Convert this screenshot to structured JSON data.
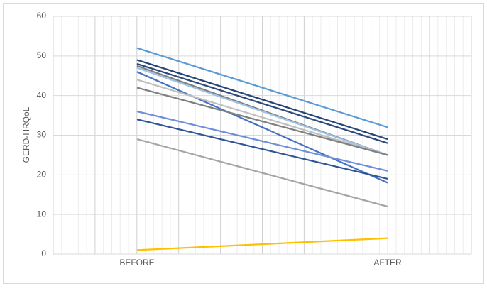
{
  "chart_data": {
    "type": "line",
    "y_label": "GERD-HRQoL",
    "categories": [
      "BEFORE",
      "AFTER"
    ],
    "ylim": [
      0,
      60
    ],
    "yticks": [
      0,
      10,
      20,
      30,
      40,
      50,
      60
    ],
    "grid": true,
    "series": [
      {
        "color": "#5b9bd5",
        "values": [
          52,
          32
        ]
      },
      {
        "color": "#264478",
        "values": [
          49,
          29
        ]
      },
      {
        "color": "#2e4a7a",
        "values": [
          48,
          28
        ]
      },
      {
        "color": "#7f7f7f",
        "values": [
          47.5,
          25
        ]
      },
      {
        "color": "#9dc3e6",
        "values": [
          47,
          25
        ]
      },
      {
        "color": "#4472c4",
        "values": [
          46,
          18
        ]
      },
      {
        "color": "#bfbfbf",
        "values": [
          44,
          25
        ]
      },
      {
        "color": "#808080",
        "values": [
          42,
          25
        ]
      },
      {
        "color": "#6f8fd8",
        "values": [
          36,
          21
        ]
      },
      {
        "color": "#2f5597",
        "values": [
          34,
          19
        ]
      },
      {
        "color": "#a5a5a5",
        "values": [
          29,
          12
        ]
      },
      {
        "color": "#ffc000",
        "values": [
          1,
          4
        ]
      }
    ]
  }
}
